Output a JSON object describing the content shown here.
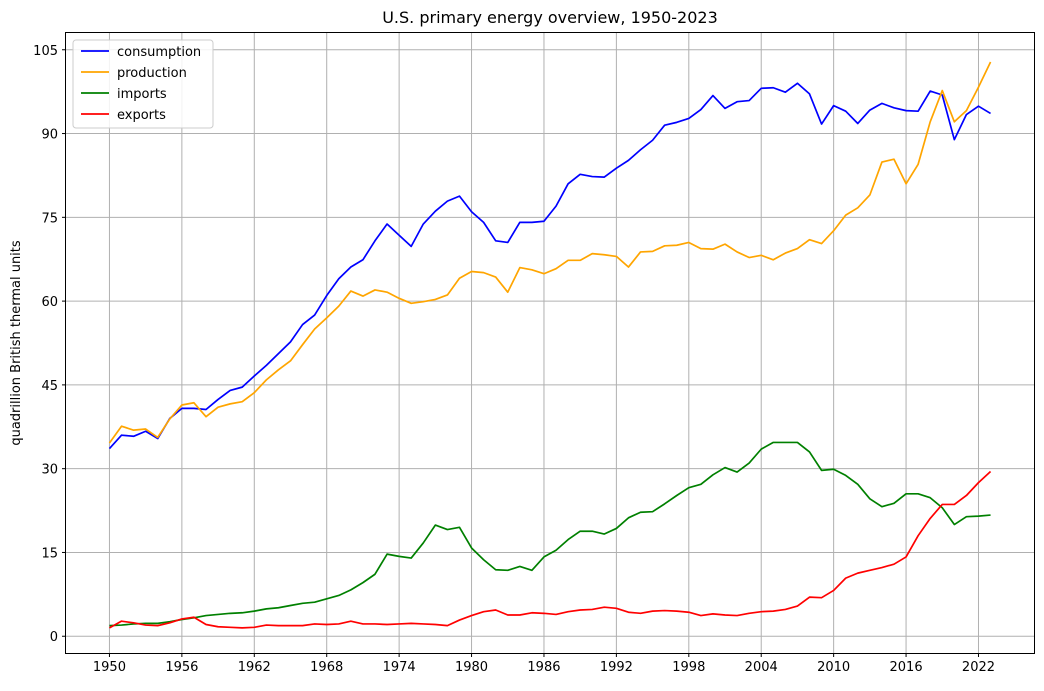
{
  "chart_data": {
    "type": "line",
    "title": "U.S. primary energy overview, 1950-2023",
    "xlabel": "",
    "ylabel": "quadrillion British thermal units",
    "xlim": [
      1946.4,
      2026.6
    ],
    "ylim": [
      -3,
      108
    ],
    "xticks": [
      1950,
      1956,
      1962,
      1968,
      1974,
      1980,
      1986,
      1992,
      1998,
      2004,
      2010,
      2016,
      2022
    ],
    "yticks": [
      0,
      15,
      30,
      45,
      60,
      75,
      90,
      105
    ],
    "grid": true,
    "legend_position": "top-left",
    "x": [
      1950,
      1951,
      1952,
      1953,
      1954,
      1955,
      1956,
      1957,
      1958,
      1959,
      1960,
      1961,
      1962,
      1963,
      1964,
      1965,
      1966,
      1967,
      1968,
      1969,
      1970,
      1971,
      1972,
      1973,
      1974,
      1975,
      1976,
      1977,
      1978,
      1979,
      1980,
      1981,
      1982,
      1983,
      1984,
      1985,
      1986,
      1987,
      1988,
      1989,
      1990,
      1991,
      1992,
      1993,
      1994,
      1995,
      1996,
      1997,
      1998,
      1999,
      2000,
      2001,
      2002,
      2003,
      2004,
      2005,
      2006,
      2007,
      2008,
      2009,
      2010,
      2011,
      2012,
      2013,
      2014,
      2015,
      2016,
      2017,
      2018,
      2019,
      2020,
      2021,
      2022,
      2023
    ],
    "series": [
      {
        "name": "consumption",
        "color": "#0000ff",
        "values": [
          33.6,
          36.0,
          35.8,
          36.7,
          35.4,
          39.0,
          40.8,
          40.8,
          40.6,
          42.4,
          44.0,
          44.6,
          46.6,
          48.5,
          50.6,
          52.7,
          55.8,
          57.5,
          61.0,
          64.0,
          66.1,
          67.4,
          70.8,
          73.8,
          71.8,
          69.8,
          73.8,
          76.1,
          77.9,
          78.8,
          76.0,
          74.1,
          70.8,
          70.5,
          74.1,
          74.1,
          74.3,
          77.0,
          81.0,
          82.7,
          82.3,
          82.2,
          83.8,
          85.2,
          87.1,
          88.8,
          91.5,
          92.0,
          92.7,
          94.3,
          96.8,
          94.5,
          95.7,
          95.9,
          98.1,
          98.2,
          97.4,
          99.0,
          97.1,
          91.7,
          95.0,
          94.0,
          91.8,
          94.2,
          95.4,
          94.6,
          94.1,
          94.0,
          97.6,
          96.9,
          88.9,
          93.4,
          94.9,
          93.6
        ]
      },
      {
        "name": "production",
        "color": "#ffa500",
        "values": [
          34.6,
          37.6,
          36.9,
          37.1,
          35.6,
          38.9,
          41.4,
          41.8,
          39.3,
          41.0,
          41.6,
          42.0,
          43.6,
          45.9,
          47.7,
          49.3,
          52.2,
          55.0,
          57.0,
          59.1,
          61.8,
          60.9,
          62.0,
          61.6,
          60.5,
          59.6,
          59.9,
          60.3,
          61.1,
          64.1,
          65.3,
          65.1,
          64.3,
          61.6,
          66.0,
          65.6,
          64.9,
          65.8,
          67.3,
          67.3,
          68.5,
          68.3,
          68.0,
          66.1,
          68.8,
          68.9,
          69.9,
          70.0,
          70.5,
          69.4,
          69.3,
          70.2,
          68.8,
          67.8,
          68.2,
          67.4,
          68.6,
          69.4,
          71.0,
          70.3,
          72.6,
          75.4,
          76.7,
          79.0,
          84.9,
          85.4,
          81.0,
          84.5,
          92.1,
          97.7,
          92.1,
          94.1,
          98.3,
          102.8
        ]
      },
      {
        "name": "imports",
        "color": "#008000",
        "values": [
          1.9,
          2.0,
          2.2,
          2.3,
          2.3,
          2.6,
          3.0,
          3.3,
          3.7,
          3.9,
          4.1,
          4.2,
          4.5,
          4.9,
          5.1,
          5.5,
          5.9,
          6.1,
          6.7,
          7.3,
          8.3,
          9.6,
          11.1,
          14.7,
          14.3,
          14.0,
          16.7,
          19.9,
          19.1,
          19.5,
          15.8,
          13.7,
          11.9,
          11.8,
          12.5,
          11.8,
          14.2,
          15.4,
          17.3,
          18.8,
          18.8,
          18.3,
          19.3,
          21.2,
          22.2,
          22.3,
          23.7,
          25.2,
          26.6,
          27.2,
          28.9,
          30.2,
          29.4,
          31.0,
          33.5,
          34.7,
          34.7,
          34.7,
          33.0,
          29.7,
          29.9,
          28.8,
          27.2,
          24.6,
          23.2,
          23.8,
          25.5,
          25.5,
          24.8,
          23.0,
          20.0,
          21.4,
          21.5,
          21.7
        ]
      },
      {
        "name": "exports",
        "color": "#ff0000",
        "values": [
          1.5,
          2.7,
          2.4,
          2.0,
          1.9,
          2.4,
          3.1,
          3.4,
          2.1,
          1.7,
          1.6,
          1.5,
          1.6,
          2.0,
          1.9,
          1.9,
          1.9,
          2.2,
          2.1,
          2.2,
          2.7,
          2.2,
          2.2,
          2.1,
          2.2,
          2.3,
          2.2,
          2.1,
          1.9,
          2.9,
          3.7,
          4.4,
          4.7,
          3.8,
          3.8,
          4.2,
          4.1,
          3.9,
          4.4,
          4.7,
          4.8,
          5.2,
          5.0,
          4.3,
          4.1,
          4.5,
          4.6,
          4.5,
          4.3,
          3.7,
          4.0,
          3.8,
          3.7,
          4.1,
          4.4,
          4.5,
          4.8,
          5.4,
          7.0,
          6.9,
          8.2,
          10.4,
          11.3,
          11.8,
          12.3,
          12.9,
          14.2,
          18.0,
          21.1,
          23.6,
          23.6,
          25.2,
          27.5,
          29.5
        ]
      }
    ]
  }
}
